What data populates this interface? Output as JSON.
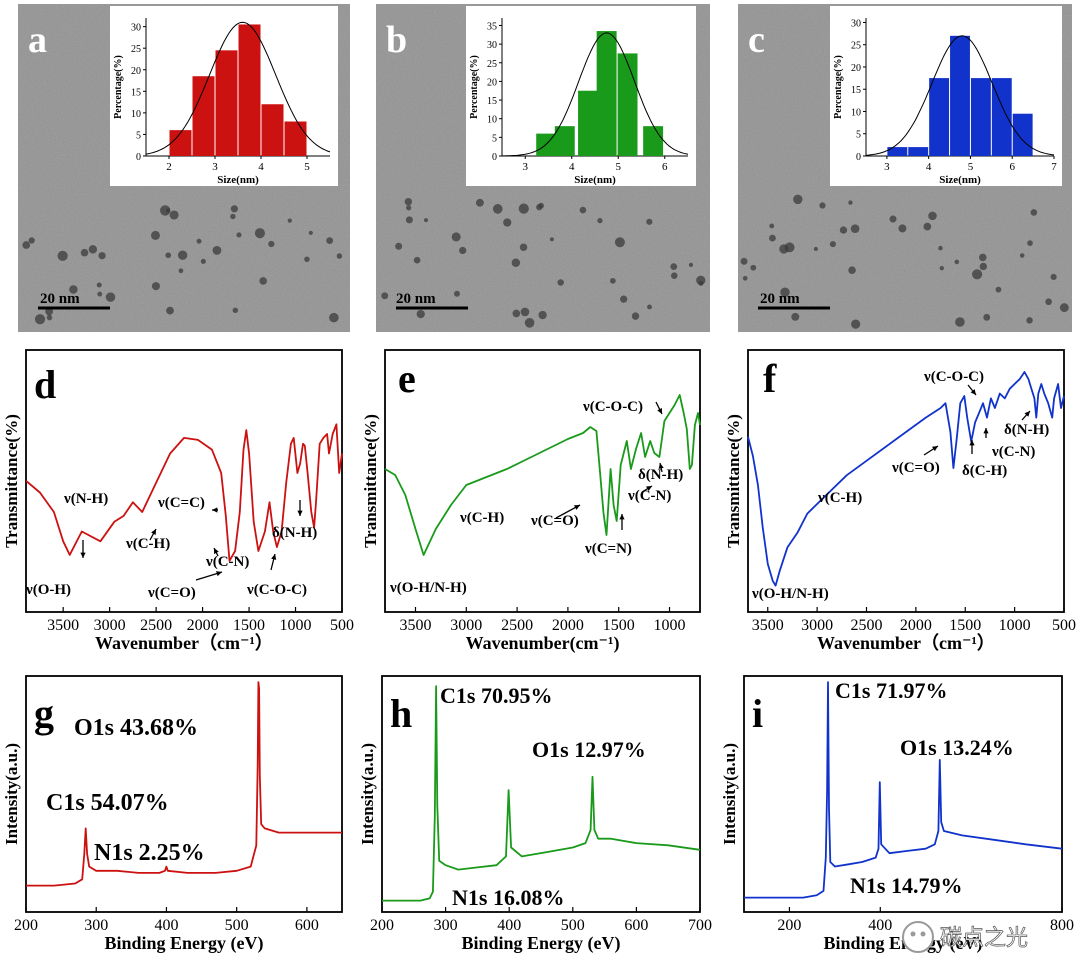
{
  "chart_data": [
    {
      "panel": "a",
      "type": "bar",
      "kind": "tem-histogram",
      "scale_bar": "20 nm",
      "xlabel": "Size(nm)",
      "ylabel": "Percentage(%)",
      "xlim": [
        1.5,
        5.5
      ],
      "ylim": [
        0,
        32
      ],
      "xticks": [
        "2",
        "3",
        "4",
        "5"
      ],
      "yticks": [
        "0",
        "5",
        "10",
        "15",
        "20",
        "25",
        "30"
      ],
      "bin_centers": [
        2.25,
        2.75,
        3.25,
        3.75,
        4.25,
        4.75
      ],
      "bin_width": 0.5,
      "values": [
        6,
        18.5,
        24.5,
        30.5,
        12,
        8
      ],
      "fit": {
        "type": "gaussian",
        "mean": 3.6,
        "sigma": 0.72,
        "peak": 31
      },
      "color": "#cc1111"
    },
    {
      "panel": "b",
      "type": "bar",
      "kind": "tem-histogram",
      "scale_bar": "20 nm",
      "xlabel": "Size(nm)",
      "ylabel": "Percentage(%)",
      "xlim": [
        2.5,
        6.5
      ],
      "ylim": [
        0,
        37
      ],
      "xticks": [
        "3",
        "4",
        "5",
        "6"
      ],
      "yticks": [
        "0",
        "5",
        "10",
        "15",
        "20",
        "25",
        "30",
        "35"
      ],
      "bin_centers": [
        3.45,
        3.85,
        4.35,
        4.75,
        5.2,
        5.75
      ],
      "bin_width": 0.45,
      "values": [
        6,
        8,
        17.5,
        33.5,
        27.5,
        8
      ],
      "fit": {
        "type": "gaussian",
        "mean": 4.75,
        "sigma": 0.6,
        "peak": 33
      },
      "color": "#1a9a1a"
    },
    {
      "panel": "c",
      "type": "bar",
      "kind": "tem-histogram",
      "scale_bar": "20 nm",
      "xlabel": "Size(nm)",
      "ylabel": "Percentage(%)",
      "xlim": [
        2.5,
        7
      ],
      "ylim": [
        0,
        31
      ],
      "xticks": [
        "3",
        "4",
        "5",
        "6",
        "7"
      ],
      "yticks": [
        "0",
        "5",
        "10",
        "15",
        "20",
        "25",
        "30"
      ],
      "bin_centers": [
        3.25,
        3.75,
        4.25,
        4.75,
        5.25,
        5.75,
        6.25
      ],
      "bin_width": 0.5,
      "values": [
        2,
        2,
        17.5,
        27,
        17.5,
        17.5,
        9.5
      ],
      "fit": {
        "type": "gaussian",
        "mean": 4.8,
        "sigma": 0.72,
        "peak": 27
      },
      "color": "#1133cc"
    },
    {
      "panel": "d",
      "type": "line",
      "kind": "ftir",
      "xlabel": "Wavenumber（cm⁻¹）",
      "ylabel": "Transmittance(%)",
      "xlim": [
        3900,
        500
      ],
      "ylim": [
        0,
        100
      ],
      "xticks": [
        "3500",
        "3000",
        "2500",
        "2000",
        "1500",
        "1000",
        "500"
      ],
      "color": "#cc1111",
      "x": [
        3900,
        3750,
        3600,
        3500,
        3430,
        3300,
        3100,
        2950,
        2850,
        2750,
        2650,
        2500,
        2350,
        2200,
        2050,
        1900,
        1800,
        1750,
        1710,
        1650,
        1600,
        1560,
        1530,
        1500,
        1450,
        1400,
        1330,
        1280,
        1240,
        1200,
        1150,
        1100,
        1050,
        1020,
        980,
        950,
        920,
        900,
        870,
        830,
        800,
        780,
        740,
        700,
        660,
        640,
        600,
        560,
        530,
        500
      ],
      "y": [
        56,
        50,
        40,
        25,
        18,
        30,
        25,
        35,
        38,
        45,
        40,
        55,
        70,
        78,
        77,
        72,
        60,
        38,
        15,
        20,
        40,
        72,
        82,
        70,
        35,
        20,
        30,
        45,
        30,
        22,
        30,
        55,
        75,
        78,
        60,
        65,
        75,
        74,
        60,
        40,
        32,
        45,
        75,
        78,
        80,
        70,
        80,
        85,
        60,
        70
      ],
      "annotations": [
        "ν(O-H)",
        "ν(N-H)",
        "ν(C-H)",
        "ν(C=C)",
        "ν(C=O)",
        "ν(C-N)",
        "ν(C-O-C)",
        "δ(N-H)"
      ]
    },
    {
      "panel": "e",
      "type": "line",
      "kind": "ftir",
      "xlabel": "Wavenumber(cm⁻¹)",
      "ylabel": "Transmittance(%)",
      "xlim": [
        3800,
        700
      ],
      "ylim": [
        0,
        100
      ],
      "xticks": [
        "3500",
        "3000",
        "2500",
        "2000",
        "1500",
        "1000"
      ],
      "color": "#1a9a1a",
      "x": [
        3800,
        3700,
        3600,
        3500,
        3420,
        3300,
        3150,
        3000,
        2900,
        2800,
        2600,
        2400,
        2200,
        2000,
        1850,
        1780,
        1720,
        1690,
        1650,
        1620,
        1580,
        1550,
        1520,
        1480,
        1420,
        1380,
        1330,
        1280,
        1240,
        1190,
        1150,
        1100,
        1050,
        1000,
        950,
        900,
        860,
        830,
        800,
        780,
        750,
        720,
        700
      ],
      "y": [
        58,
        55,
        45,
        28,
        15,
        28,
        40,
        50,
        52,
        54,
        58,
        63,
        68,
        73,
        76,
        79,
        77,
        60,
        36,
        25,
        58,
        40,
        32,
        60,
        72,
        58,
        68,
        76,
        64,
        72,
        66,
        64,
        82,
        86,
        90,
        95,
        86,
        78,
        58,
        60,
        80,
        86,
        80
      ],
      "annotations": [
        "ν(O-H/N-H)",
        "ν(C-H)",
        "ν(C=O)",
        "ν(C=N)",
        "ν(C-N)",
        "δ(N-H)",
        "ν(C-O-C)"
      ]
    },
    {
      "panel": "f",
      "type": "line",
      "kind": "ftir",
      "xlabel": "Wavenumber（cm⁻¹）",
      "ylabel": "Transmittance(%)",
      "xlim": [
        3700,
        500
      ],
      "ylim": [
        0,
        100
      ],
      "xticks": [
        "3500",
        "3000",
        "2500",
        "2000",
        "1500",
        "1000",
        "500"
      ],
      "color": "#1133cc",
      "x": [
        3700,
        3650,
        3600,
        3550,
        3500,
        3450,
        3420,
        3380,
        3300,
        3200,
        3100,
        3000,
        2850,
        2700,
        2500,
        2300,
        2100,
        1900,
        1750,
        1700,
        1650,
        1620,
        1590,
        1550,
        1510,
        1480,
        1440,
        1400,
        1360,
        1320,
        1280,
        1240,
        1200,
        1150,
        1100,
        1050,
        1000,
        950,
        900,
        860,
        830,
        800,
        780,
        760,
        730,
        700,
        660,
        620,
        600,
        560,
        530,
        500
      ],
      "y": [
        68,
        60,
        48,
        30,
        15,
        8,
        6,
        12,
        22,
        28,
        36,
        40,
        46,
        52,
        58,
        64,
        70,
        76,
        80,
        82,
        70,
        55,
        66,
        82,
        85,
        76,
        66,
        74,
        78,
        82,
        76,
        84,
        80,
        86,
        84,
        88,
        90,
        92,
        95,
        92,
        88,
        84,
        76,
        86,
        90,
        86,
        82,
        76,
        84,
        90,
        80,
        85
      ],
      "annotations": [
        "ν(O-H/N-H)",
        "ν(C-H)",
        "ν(C=O)",
        "δ(C-H)",
        "ν(C-N)",
        "δ(N-H)",
        "ν(C-O-C)"
      ]
    },
    {
      "panel": "g",
      "type": "line",
      "kind": "xps-survey",
      "xlabel": "Binding Energy (eV)",
      "ylabel": "Intensity(a.u.)",
      "xlim": [
        200,
        650
      ],
      "ylim": [
        0,
        100
      ],
      "xticks": [
        "200",
        "300",
        "400",
        "500",
        "600"
      ],
      "color": "#cc1111",
      "peaks": [
        {
          "label": "C1s",
          "percent": "54.07%",
          "x": 285
        },
        {
          "label": "N1s",
          "percent": "2.25%",
          "x": 400
        },
        {
          "label": "O1s",
          "percent": "43.68%",
          "x": 532
        }
      ],
      "x": [
        200,
        240,
        270,
        280,
        283,
        285,
        287,
        290,
        300,
        330,
        360,
        390,
        398,
        400,
        402,
        430,
        470,
        500,
        520,
        528,
        530,
        531,
        532,
        533,
        535,
        540,
        560,
        600,
        650
      ],
      "y": [
        3,
        3,
        4,
        6,
        18,
        30,
        18,
        12,
        10,
        10,
        9,
        9,
        10,
        12,
        10,
        9,
        9,
        10,
        12,
        22,
        60,
        99,
        96,
        55,
        32,
        30,
        28,
        28,
        28
      ]
    },
    {
      "panel": "h",
      "type": "line",
      "kind": "xps-survey",
      "xlabel": "Binding Energy (eV)",
      "ylabel": "Intensity(a.u.)",
      "xlim": [
        200,
        700
      ],
      "ylim": [
        0,
        100
      ],
      "xticks": [
        "200",
        "300",
        "400",
        "500",
        "600",
        "700"
      ],
      "color": "#1a9a1a",
      "peaks": [
        {
          "label": "C1s",
          "percent": "70.95%",
          "x": 285
        },
        {
          "label": "N1s",
          "percent": "16.08%",
          "x": 399
        },
        {
          "label": "O1s",
          "percent": "12.97%",
          "x": 532
        }
      ],
      "x": [
        200,
        260,
        275,
        280,
        283,
        285,
        287,
        290,
        300,
        320,
        350,
        380,
        395,
        399,
        403,
        420,
        460,
        500,
        520,
        528,
        531,
        534,
        540,
        560,
        600,
        650,
        700
      ],
      "y": [
        2,
        2,
        3,
        6,
        40,
        99,
        45,
        20,
        18,
        16,
        17,
        18,
        22,
        52,
        26,
        22,
        24,
        26,
        28,
        34,
        58,
        34,
        30,
        30,
        28,
        27,
        25
      ]
    },
    {
      "panel": "i",
      "type": "line",
      "kind": "xps-survey",
      "xlabel": "Binding Energy (eV)",
      "ylabel": "Intensity(a.u.)",
      "xlim": [
        100,
        800
      ],
      "ylim": [
        0,
        100
      ],
      "xticks": [
        "200",
        "400",
        "800"
      ],
      "color": "#1133cc",
      "peaks": [
        {
          "label": "C1s",
          "percent": "71.97%",
          "x": 285
        },
        {
          "label": "N1s",
          "percent": "14.79%",
          "x": 399
        },
        {
          "label": "O1s",
          "percent": "13.24%",
          "x": 532
        }
      ],
      "x": [
        100,
        230,
        260,
        275,
        280,
        283,
        285,
        287,
        290,
        300,
        330,
        360,
        390,
        396,
        399,
        402,
        420,
        460,
        500,
        520,
        528,
        531,
        534,
        540,
        580,
        650,
        720,
        800
      ],
      "y": [
        2,
        2,
        3,
        5,
        20,
        50,
        99,
        42,
        18,
        16,
        17,
        18,
        20,
        24,
        54,
        26,
        22,
        23,
        24,
        26,
        32,
        64,
        36,
        32,
        30,
        28,
        26,
        24
      ]
    }
  ],
  "watermark": {
    "text": "碳点之光"
  }
}
